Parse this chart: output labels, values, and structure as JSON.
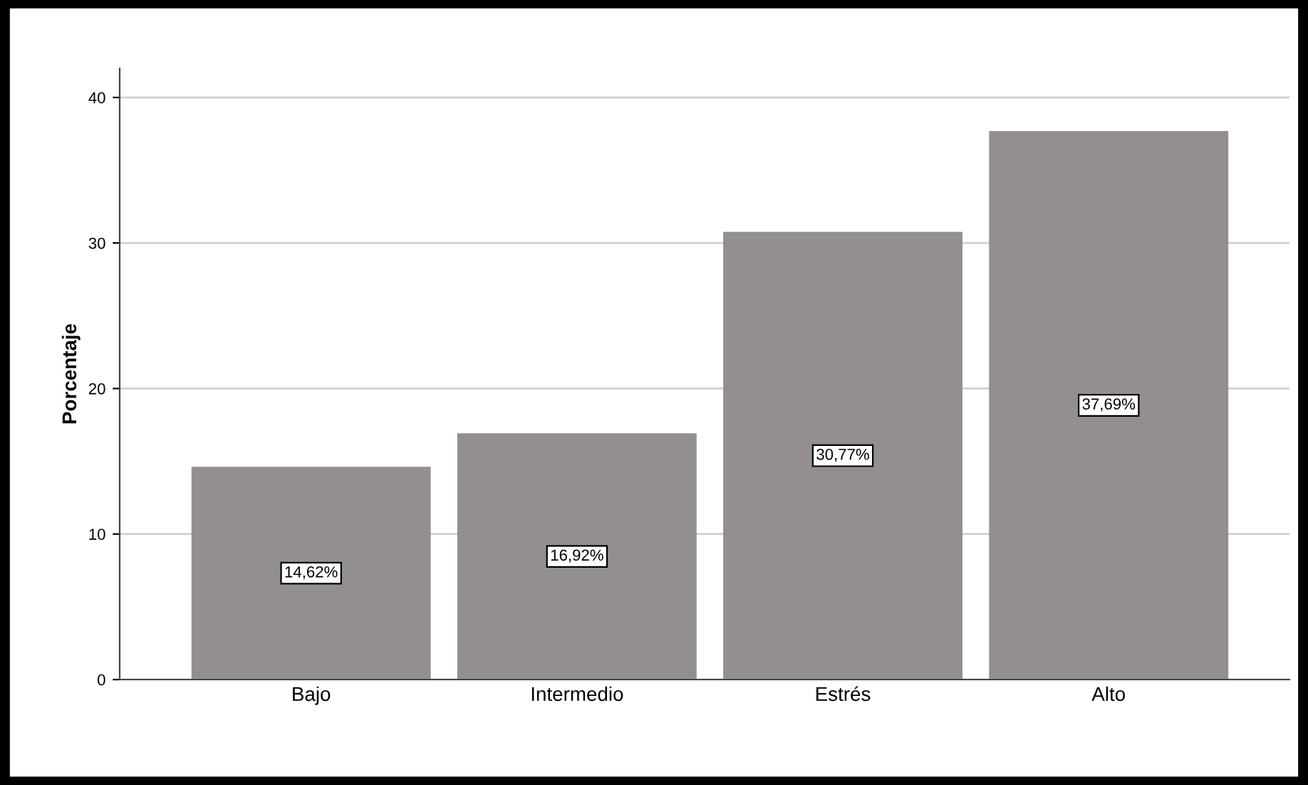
{
  "chart_data": {
    "type": "bar",
    "ylabel": "Porcentaje",
    "categories": [
      "Bajo",
      "Intermedio",
      "Estrés",
      "Alto"
    ],
    "values": [
      14.62,
      16.92,
      30.77,
      37.69
    ],
    "value_labels": [
      "14,62%",
      "16,92%",
      "30,77%",
      "37,69%"
    ],
    "color": "#938f8e",
    "ylim": [
      0,
      42
    ],
    "yticks": [
      0,
      10,
      20,
      30,
      40
    ],
    "grid": "y"
  }
}
